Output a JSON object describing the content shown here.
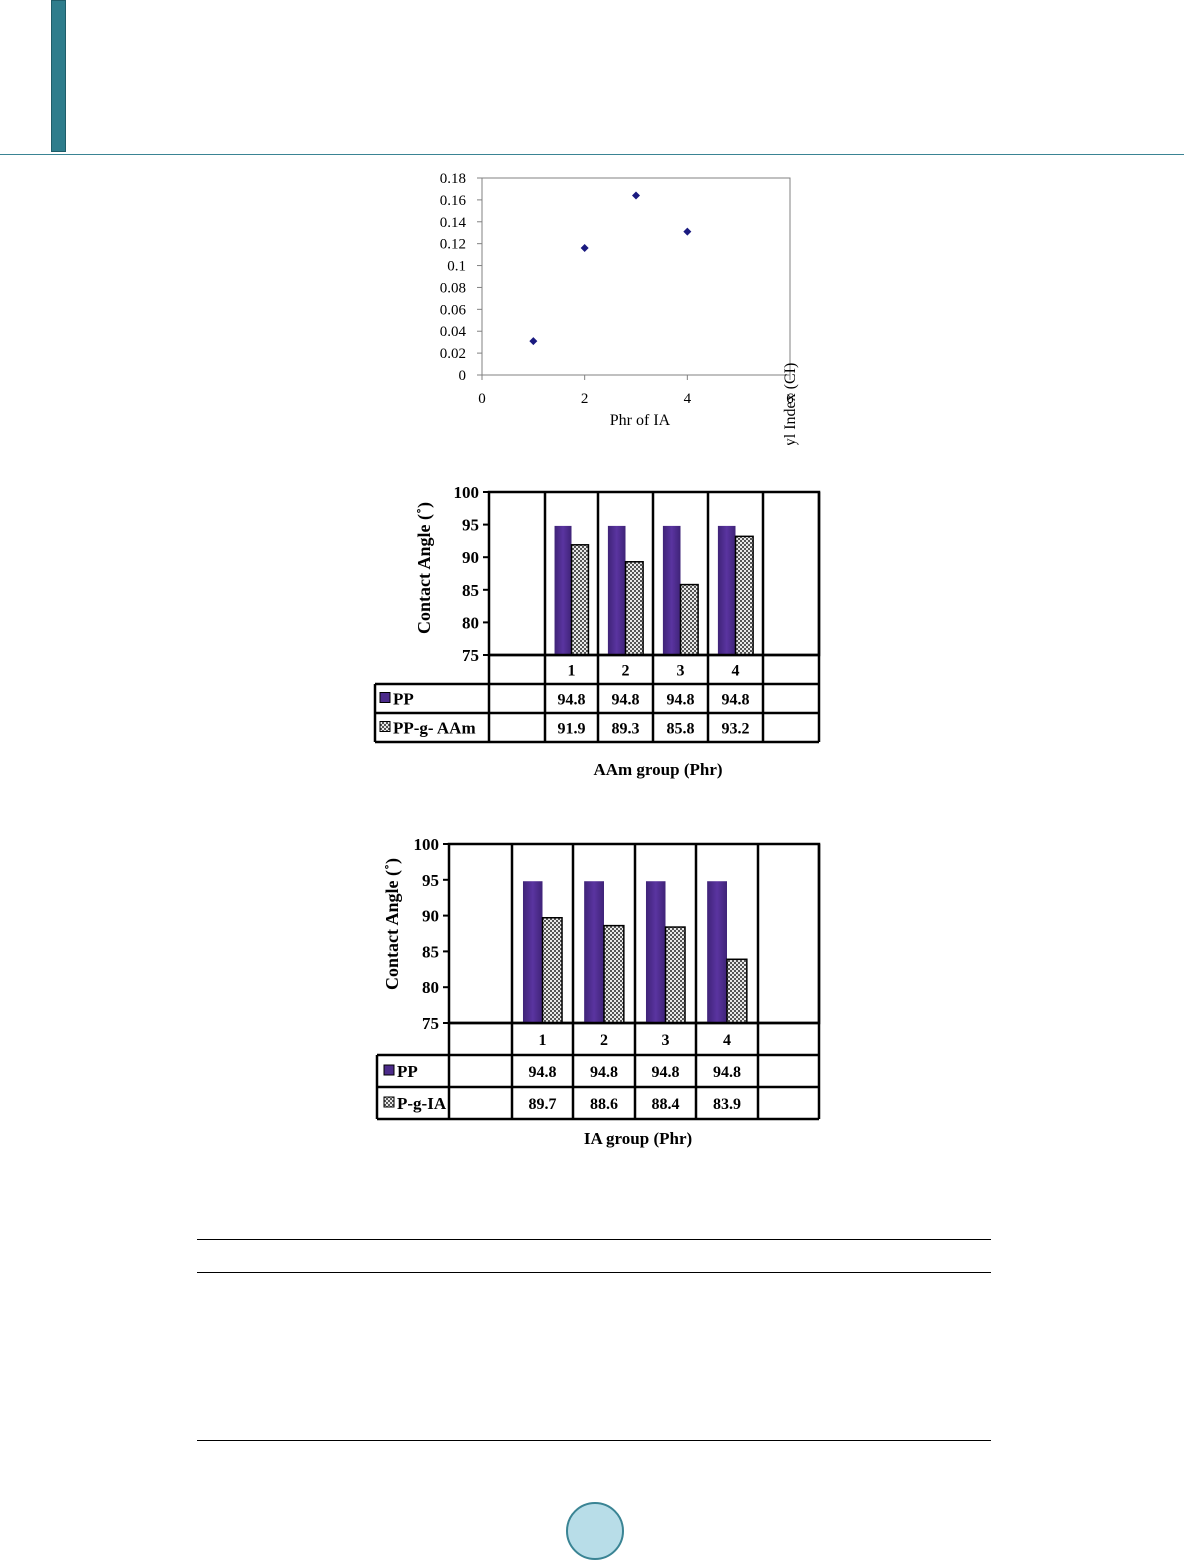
{
  "chart_data": [
    {
      "type": "scatter",
      "title": "",
      "xlabel": "Phr of IA",
      "ylabel": "Carbonyl Index (CI)",
      "xlim": [
        0,
        6
      ],
      "ylim": [
        0,
        0.18
      ],
      "xticks": [
        "0",
        "2",
        "4",
        "6"
      ],
      "yticks": [
        "0",
        "0.02",
        "0.04",
        "0.06",
        "0.08",
        "0.1",
        "0.12",
        "0.14",
        "0.16",
        "0.18"
      ],
      "points": [
        {
          "x": 1,
          "y": 0.031
        },
        {
          "x": 2,
          "y": 0.116
        },
        {
          "x": 3,
          "y": 0.164
        },
        {
          "x": 4,
          "y": 0.131
        }
      ],
      "marker_color": "#1a1a80",
      "grid": false
    },
    {
      "type": "bar",
      "title": "",
      "xlabel": "AAm group (Phr)",
      "ylabel": "Contact Angle (˚)",
      "ylim": [
        75,
        100
      ],
      "yticks": [
        "75",
        "80",
        "85",
        "90",
        "95",
        "100"
      ],
      "categories": [
        "1",
        "2",
        "3",
        "4"
      ],
      "series": [
        {
          "name": "PP",
          "values": [
            94.8,
            94.8,
            94.8,
            94.8
          ],
          "labels": [
            "94.8",
            "94.8",
            "94.8",
            "94.8"
          ],
          "color": "#4b2a8a",
          "pattern": "solid"
        },
        {
          "name": "PP-g- AAm",
          "values": [
            91.9,
            89.3,
            85.8,
            93.2
          ],
          "labels": [
            "91.9",
            "89.3",
            "85.8",
            "93.2"
          ],
          "color": "#8c8c8c",
          "pattern": "checker"
        }
      ],
      "data_table": true
    },
    {
      "type": "bar",
      "title": "",
      "xlabel": "IA group (Phr)",
      "ylabel": "Contact Angle (˚)",
      "ylim": [
        75,
        100
      ],
      "yticks": [
        "75",
        "80",
        "85",
        "90",
        "95",
        "100"
      ],
      "categories": [
        "1",
        "2",
        "3",
        "4"
      ],
      "series": [
        {
          "name": "PP",
          "values": [
            94.8,
            94.8,
            94.8,
            94.8
          ],
          "labels": [
            "94.8",
            "94.8",
            "94.8",
            "94.8"
          ],
          "color": "#4b2a8a",
          "pattern": "solid"
        },
        {
          "name": "P-g-IA",
          "values": [
            89.7,
            88.6,
            88.4,
            83.9
          ],
          "labels": [
            "89.7",
            "88.6",
            "88.4",
            "83.9"
          ],
          "color": "#8c8c8c",
          "pattern": "checker"
        }
      ],
      "data_table": true
    }
  ]
}
